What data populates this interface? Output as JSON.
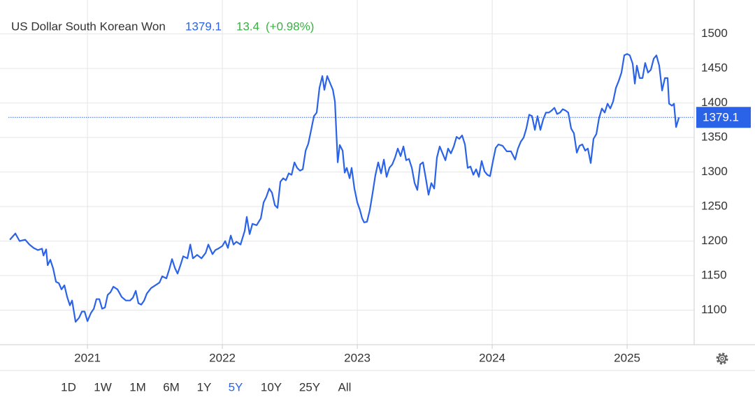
{
  "header": {
    "title": "US Dollar South Korean Won",
    "change": "13.4",
    "change_pct": "(+0.98%)"
  },
  "chart_data": {
    "type": "line",
    "xlim": [
      2020.414,
      2025.497
    ],
    "xticks": [
      2021,
      2022,
      2023,
      2024,
      2025
    ],
    "ylim": [
      1050,
      1540
    ],
    "yticks": [
      1100,
      1150,
      1200,
      1250,
      1300,
      1350,
      1400,
      1450,
      1500
    ],
    "grid": true,
    "series": [
      {
        "name": "US Dollar South Korean Won",
        "color": "#2b63e8",
        "x": [
          2020.425,
          2020.466,
          2020.497,
          2020.539,
          2020.57,
          2020.601,
          2020.632,
          2020.663,
          2020.674,
          2020.694,
          2020.705,
          2020.725,
          2020.746,
          2020.767,
          2020.788,
          2020.808,
          2020.829,
          2020.85,
          2020.87,
          2020.886,
          2020.912,
          2020.938,
          2020.959,
          2020.979,
          2021.0,
          2021.026,
          2021.047,
          2021.067,
          2021.088,
          2021.109,
          2021.13,
          2021.15,
          2021.171,
          2021.192,
          2021.223,
          2021.254,
          2021.285,
          2021.316,
          2021.337,
          2021.358,
          2021.378,
          2021.399,
          2021.42,
          2021.44,
          2021.472,
          2021.503,
          2021.534,
          2021.554,
          2021.585,
          2021.606,
          2021.627,
          2021.648,
          2021.668,
          2021.689,
          2021.71,
          2021.741,
          2021.762,
          2021.782,
          2021.813,
          2021.845,
          2021.876,
          2021.896,
          2021.927,
          2021.948,
          2021.969,
          2022.0,
          2022.021,
          2022.041,
          2022.062,
          2022.083,
          2022.104,
          2022.135,
          2022.166,
          2022.181,
          2022.202,
          2022.223,
          2022.254,
          2022.285,
          2022.306,
          2022.326,
          2022.347,
          2022.368,
          2022.389,
          2022.409,
          2022.43,
          2022.451,
          2022.471,
          2022.492,
          2022.513,
          2022.534,
          2022.554,
          2022.575,
          2022.596,
          2022.617,
          2022.637,
          2022.658,
          2022.679,
          2022.699,
          2022.72,
          2022.741,
          2022.756,
          2022.777,
          2022.798,
          2022.819,
          2022.834,
          2022.855,
          2022.87,
          2022.891,
          2022.907,
          2022.922,
          2022.943,
          2022.958,
          2022.979,
          2023.0,
          2023.02,
          2023.036,
          2023.051,
          2023.072,
          2023.093,
          2023.114,
          2023.134,
          2023.155,
          2023.176,
          2023.197,
          2023.217,
          2023.238,
          2023.259,
          2023.28,
          2023.3,
          2023.321,
          2023.342,
          2023.362,
          2023.383,
          2023.404,
          2023.425,
          2023.445,
          2023.466,
          2023.487,
          2023.508,
          2023.528,
          2023.549,
          2023.57,
          2023.59,
          2023.611,
          2023.632,
          2023.653,
          2023.673,
          2023.694,
          2023.715,
          2023.736,
          2023.756,
          2023.777,
          2023.798,
          2023.818,
          2023.839,
          2023.86,
          2023.881,
          2023.901,
          2023.922,
          2023.943,
          2023.964,
          2023.984,
          2024.005,
          2024.026,
          2024.046,
          2024.077,
          2024.108,
          2024.139,
          2024.17,
          2024.191,
          2024.212,
          2024.233,
          2024.253,
          2024.274,
          2024.295,
          2024.316,
          2024.336,
          2024.357,
          2024.378,
          2024.398,
          2024.419,
          2024.44,
          2024.461,
          2024.481,
          2024.502,
          2024.523,
          2024.544,
          2024.564,
          2024.585,
          2024.606,
          2024.627,
          2024.647,
          2024.668,
          2024.689,
          2024.709,
          2024.73,
          2024.751,
          2024.772,
          2024.792,
          2024.813,
          2024.834,
          2024.855,
          2024.875,
          2024.896,
          2024.917,
          2024.938,
          2024.958,
          2024.979,
          2025.0,
          2025.02,
          2025.041,
          2025.057,
          2025.072,
          2025.093,
          2025.114,
          2025.134,
          2025.155,
          2025.176,
          2025.197,
          2025.217,
          2025.238,
          2025.259,
          2025.28,
          2025.3,
          2025.311,
          2025.332,
          2025.347,
          2025.363,
          2025.384
        ],
        "values": [
          1202,
          1211,
          1200,
          1202,
          1195,
          1190,
          1187,
          1189,
          1179,
          1188,
          1165,
          1173,
          1160,
          1141,
          1139,
          1130,
          1136,
          1119,
          1107,
          1114,
          1083,
          1089,
          1098,
          1098,
          1084,
          1096,
          1102,
          1116,
          1116,
          1102,
          1104,
          1122,
          1126,
          1134,
          1130,
          1119,
          1114,
          1114,
          1118,
          1128,
          1110,
          1108,
          1114,
          1124,
          1132,
          1136,
          1140,
          1149,
          1146,
          1159,
          1174,
          1161,
          1153,
          1165,
          1178,
          1175,
          1195,
          1175,
          1180,
          1175,
          1183,
          1195,
          1181,
          1187,
          1189,
          1193,
          1200,
          1190,
          1208,
          1195,
          1199,
          1195,
          1215,
          1235,
          1210,
          1225,
          1223,
          1233,
          1256,
          1264,
          1276,
          1270,
          1252,
          1248,
          1286,
          1291,
          1288,
          1298,
          1296,
          1314,
          1306,
          1302,
          1304,
          1331,
          1341,
          1361,
          1381,
          1386,
          1422,
          1439,
          1419,
          1439,
          1429,
          1419,
          1402,
          1314,
          1339,
          1331,
          1299,
          1306,
          1291,
          1306,
          1276,
          1256,
          1245,
          1233,
          1227,
          1228,
          1245,
          1270,
          1295,
          1314,
          1298,
          1318,
          1293,
          1306,
          1311,
          1321,
          1334,
          1323,
          1337,
          1317,
          1319,
          1306,
          1284,
          1274,
          1311,
          1314,
          1291,
          1267,
          1284,
          1276,
          1321,
          1337,
          1327,
          1317,
          1334,
          1327,
          1337,
          1351,
          1348,
          1353,
          1340,
          1306,
          1308,
          1296,
          1304,
          1293,
          1316,
          1301,
          1296,
          1294,
          1315,
          1335,
          1340,
          1338,
          1330,
          1330,
          1318,
          1334,
          1344,
          1350,
          1363,
          1383,
          1381,
          1361,
          1381,
          1361,
          1376,
          1386,
          1386,
          1389,
          1393,
          1384,
          1386,
          1391,
          1389,
          1386,
          1363,
          1356,
          1328,
          1338,
          1340,
          1331,
          1334,
          1313,
          1348,
          1355,
          1378,
          1392,
          1386,
          1399,
          1392,
          1402,
          1422,
          1432,
          1444,
          1469,
          1471,
          1469,
          1457,
          1428,
          1454,
          1436,
          1436,
          1458,
          1444,
          1448,
          1464,
          1469,
          1454,
          1418,
          1436,
          1436,
          1399,
          1396,
          1399,
          1365,
          1379.1
        ]
      }
    ]
  },
  "ranges": [
    "1D",
    "1W",
    "1M",
    "6M",
    "1Y",
    "5Y",
    "10Y",
    "25Y",
    "All"
  ],
  "active_range": "5Y"
}
